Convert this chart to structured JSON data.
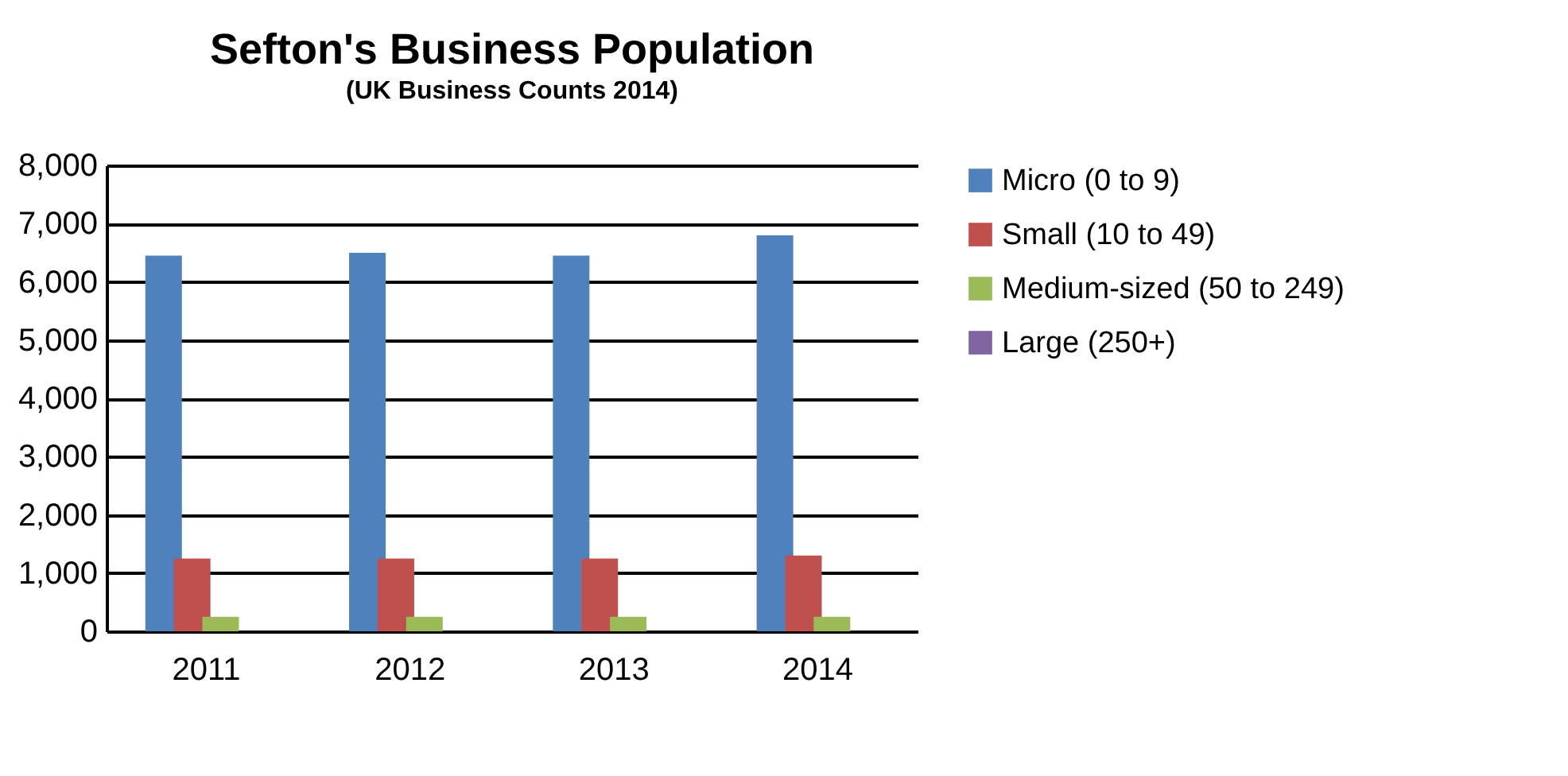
{
  "chart_data": {
    "type": "bar",
    "title": "Sefton's Business Population",
    "subtitle": "(UK Business Counts 2014)",
    "categories": [
      "2011",
      "2012",
      "2013",
      "2014"
    ],
    "series": [
      {
        "name": "Micro (0 to 9)",
        "color": "#4f81bd",
        "values": [
          6450,
          6500,
          6450,
          6800
        ]
      },
      {
        "name": "Small (10 to 49)",
        "color": "#c0504d",
        "values": [
          1250,
          1250,
          1250,
          1300
        ]
      },
      {
        "name": "Medium-sized (50 to 249)",
        "color": "#9bbb59",
        "values": [
          250,
          250,
          250,
          250
        ]
      },
      {
        "name": "Large (250+)",
        "color": "#8064a2",
        "values": [
          null,
          null,
          null,
          null
        ]
      }
    ],
    "ylim": [
      0,
      8000
    ],
    "yticks": [
      0,
      {
        "value": 1000,
        "label": "1,000"
      },
      {
        "value": 2000,
        "label": "2,000"
      },
      {
        "value": 3000,
        "label": "3,000"
      },
      {
        "value": 4000,
        "label": "4,000"
      },
      {
        "value": 5000,
        "label": "5,000"
      },
      {
        "value": 6000,
        "label": "6,000"
      },
      {
        "value": 7000,
        "label": "7,000"
      },
      {
        "value": 8000,
        "label": "8,000"
      }
    ],
    "grid": "y",
    "legend": "right"
  }
}
